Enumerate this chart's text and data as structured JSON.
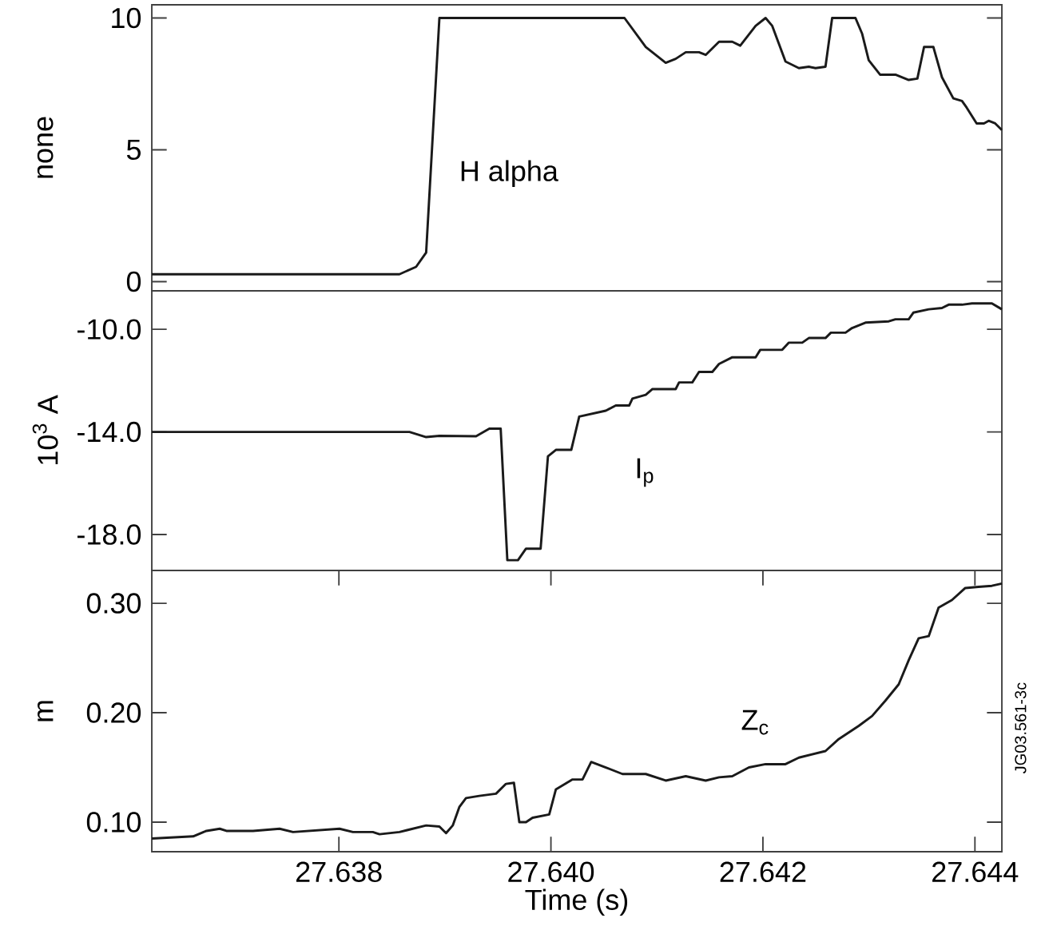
{
  "chart_data": [
    {
      "type": "line",
      "ylabel": "none",
      "xlim": [
        27.636235,
        27.644254
      ],
      "ylim": [
        -0.35,
        10.5
      ],
      "yticks": [
        0,
        5,
        10
      ],
      "tick_labels": "y",
      "annotations": [
        "H alpha"
      ],
      "series": [
        {
          "color": "#1a1a1a",
          "x": [
            27.636235,
            27.638571,
            27.638728,
            27.638823,
            27.638948,
            27.640694,
            27.640895,
            27.641083,
            27.641177,
            27.641272,
            27.641397,
            27.64146,
            27.641586,
            27.641711,
            27.641786,
            27.641931,
            27.642025,
            27.642088,
            27.642213,
            27.642339,
            27.642433,
            27.642496,
            27.64259,
            27.642653,
            27.642873,
            27.642936,
            27.642998,
            27.643105,
            27.64325,
            27.643375,
            27.643457,
            27.64352,
            27.643608,
            27.643689,
            27.643796,
            27.643878,
            27.643922,
            27.644016,
            27.644085,
            27.644129,
            27.644191,
            27.644254
          ],
          "values": [
            0.28,
            0.28,
            0.56,
            1.1,
            10,
            10,
            8.9,
            8.3,
            8.45,
            8.7,
            8.7,
            8.6,
            9.1,
            9.1,
            8.95,
            9.7,
            10,
            9.7,
            8.35,
            8.1,
            8.15,
            8.1,
            8.15,
            10,
            10,
            9.4,
            8.4,
            7.85,
            7.85,
            7.65,
            7.7,
            8.9,
            8.9,
            7.75,
            6.95,
            6.85,
            6.6,
            6.0,
            6.0,
            6.1,
            6.0,
            5.75
          ]
        }
      ]
    },
    {
      "type": "line",
      "ylabel": "10$^{3}$ A",
      "xlim": [
        27.636235,
        27.644254
      ],
      "ylim": [
        -19.4,
        -8.5
      ],
      "yticks": [
        {
          "value": -18,
          "label": "-18.0"
        },
        {
          "value": -14,
          "label": "-14.0"
        },
        {
          "value": -10,
          "label": "-10.0"
        }
      ],
      "tick_labels": "y",
      "annotations": [
        "I$_{p}$"
      ],
      "series": [
        {
          "color": "#1a1a1a",
          "x": [
            27.636235,
            27.638666,
            27.638823,
            27.638948,
            27.639294,
            27.639419,
            27.639526,
            27.639589,
            27.639689,
            27.639765,
            27.639903,
            27.639972,
            27.640047,
            27.640192,
            27.640267,
            27.640518,
            27.640612,
            27.640738,
            27.640769,
            27.640895,
            27.640958,
            27.641177,
            27.641209,
            27.641334,
            27.641397,
            27.641523,
            27.641586,
            27.641711,
            27.641931,
            27.641975,
            27.642182,
            27.642245,
            27.642371,
            27.642433,
            27.64259,
            27.642641,
            27.642779,
            27.642841,
            27.642967,
            27.643187,
            27.64325,
            27.643375,
            27.643419,
            27.643564,
            27.643689,
            27.643752,
            27.643878,
            27.643972,
            27.64416,
            27.644254
          ],
          "values": [
            -14.0,
            -14.0,
            -14.2,
            -14.15,
            -14.17,
            -13.87,
            -13.87,
            -19.0,
            -19.0,
            -18.55,
            -18.55,
            -14.95,
            -14.7,
            -14.7,
            -13.4,
            -13.17,
            -12.97,
            -12.97,
            -12.7,
            -12.55,
            -12.33,
            -12.33,
            -12.07,
            -12.07,
            -11.66,
            -11.66,
            -11.35,
            -11.09,
            -11.09,
            -10.8,
            -10.8,
            -10.52,
            -10.52,
            -10.34,
            -10.34,
            -10.13,
            -10.13,
            -9.95,
            -9.74,
            -9.69,
            -9.61,
            -9.61,
            -9.35,
            -9.22,
            -9.17,
            -9.04,
            -9.04,
            -8.99,
            -8.99,
            -9.22
          ]
        }
      ]
    },
    {
      "type": "line",
      "xlabel": "Time (s)",
      "ylabel": "m",
      "xlim": [
        27.636235,
        27.644254
      ],
      "ylim": [
        0.073,
        0.33
      ],
      "xticks": [
        27.638,
        {
          "value": 27.64,
          "label": "27.640"
        },
        27.642,
        27.644
      ],
      "yticks": [
        {
          "value": 0.1,
          "label": "0.10"
        },
        {
          "value": 0.2,
          "label": "0.20"
        },
        {
          "value": 0.3,
          "label": "0.30"
        }
      ],
      "annotations": [
        "Z$_{c}$",
        "JG03.561-3c"
      ],
      "series": [
        {
          "color": "#1a1a1a",
          "x": [
            27.636235,
            27.636625,
            27.63675,
            27.636876,
            27.636939,
            27.63719,
            27.637441,
            27.637567,
            27.638006,
            27.638132,
            27.63832,
            27.638383,
            27.638571,
            27.638697,
            27.638823,
            27.638948,
            27.639011,
            27.639074,
            27.639137,
            27.639199,
            27.639325,
            27.639482,
            27.639576,
            27.639651,
            27.639702,
            27.639765,
            27.639827,
            27.639984,
            27.640047,
            27.640204,
            27.640298,
            27.64038,
            27.640518,
            27.640675,
            27.640895,
            27.641083,
            27.641272,
            27.64146,
            27.641586,
            27.641711,
            27.641868,
            27.642025,
            27.642213,
            27.642339,
            27.64259,
            27.642716,
            27.642904,
            27.64303,
            27.643155,
            27.643281,
            27.643375,
            27.643469,
            27.643564,
            27.643657,
            27.643783,
            27.643909,
            27.644034,
            27.64416,
            27.644254
          ],
          "values": [
            0.085,
            0.087,
            0.092,
            0.094,
            0.092,
            0.092,
            0.094,
            0.091,
            0.094,
            0.091,
            0.091,
            0.089,
            0.091,
            0.094,
            0.097,
            0.096,
            0.09,
            0.097,
            0.114,
            0.122,
            0.124,
            0.126,
            0.135,
            0.136,
            0.1,
            0.1,
            0.104,
            0.107,
            0.13,
            0.139,
            0.139,
            0.155,
            0.15,
            0.144,
            0.144,
            0.138,
            0.142,
            0.138,
            0.141,
            0.142,
            0.15,
            0.153,
            0.153,
            0.159,
            0.165,
            0.176,
            0.188,
            0.197,
            0.211,
            0.226,
            0.248,
            0.268,
            0.27,
            0.296,
            0.303,
            0.314,
            0.315,
            0.316,
            0.318
          ]
        }
      ]
    }
  ]
}
